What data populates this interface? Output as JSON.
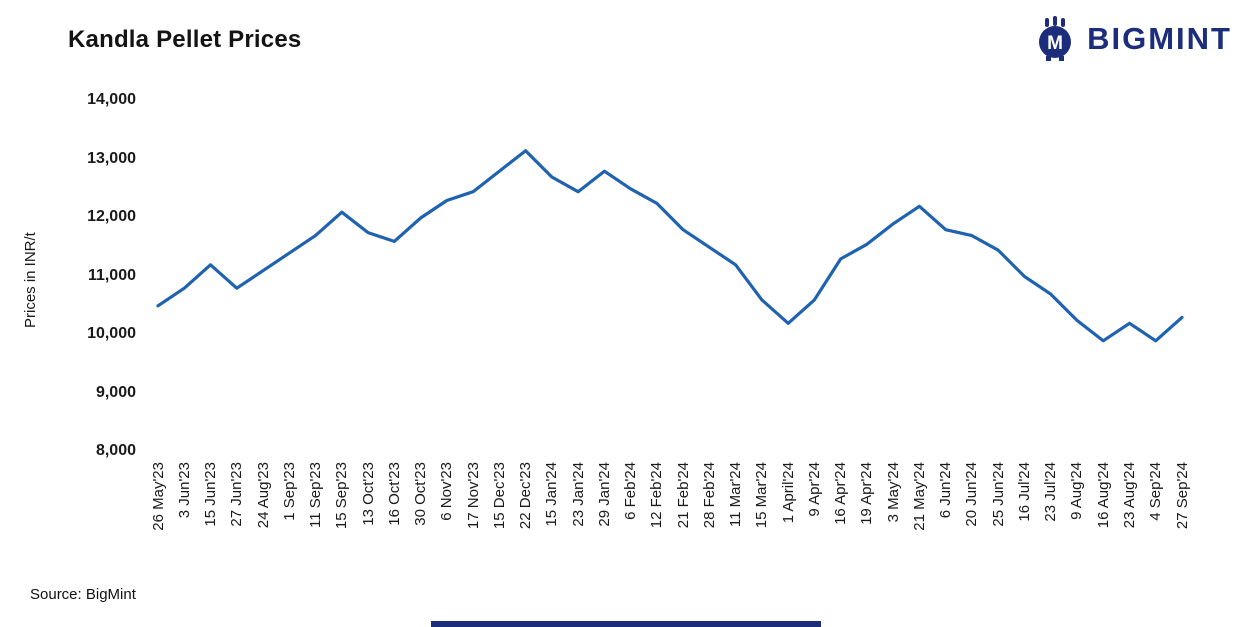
{
  "header": {
    "title": "Kandla Pellet Prices",
    "logo_text": "BIGMINT"
  },
  "chart_data": {
    "type": "line",
    "title": "Kandla Pellet Prices",
    "xlabel": "",
    "ylabel": "Prices in INR/t",
    "ylim": [
      8000,
      14000
    ],
    "ytick_interval": 1000,
    "ytick_labels": [
      "14,000",
      "13,000",
      "12,000",
      "11,000",
      "10,000",
      "9,000",
      "8,000"
    ],
    "grid": false,
    "legend_position": "none",
    "line_color": "#1f63b0",
    "categories": [
      "26 May'23",
      "3 Jun'23",
      "15 Jun'23",
      "27 Jun'23",
      "24 Aug'23",
      "1 Sep'23",
      "11 Sep'23",
      "15 Sep'23",
      "13 Oct'23",
      "16 Oct'23",
      "30 Oct'23",
      "6 Nov'23",
      "17 Nov'23",
      "15 Dec'23",
      "22 Dec'23",
      "15 Jan'24",
      "23 Jan'24",
      "29 Jan'24",
      "6 Feb'24",
      "12 Feb'24",
      "21 Feb'24",
      "28 Feb'24",
      "11 Mar'24",
      "15 Mar'24",
      "1 April'24",
      "9 Apr'24",
      "16 Apr'24",
      "19 Apr'24",
      "3 May'24",
      "21 May'24",
      "6 Jun'24",
      "20 Jun'24",
      "25 Jun'24",
      "16 Jul'24",
      "23 Jul'24",
      "9 Aug'24",
      "16 Aug'24",
      "23 Aug'24",
      "4 Sep'24",
      "27 Sep'24"
    ],
    "values": [
      10500,
      10800,
      11200,
      10800,
      11100,
      11400,
      11700,
      12100,
      11750,
      11600,
      12000,
      12300,
      12450,
      12800,
      13150,
      12700,
      12450,
      12800,
      12500,
      12250,
      11800,
      11500,
      11200,
      10600,
      10200,
      10600,
      11300,
      11550,
      11900,
      12200,
      11800,
      11700,
      11450,
      11000,
      10700,
      10250,
      9900,
      10200,
      9900,
      10300
    ]
  },
  "footer": {
    "source": "Source: BigMint"
  },
  "colors": {
    "line": "#1f63b0",
    "brand_navy": "#1c2e7b",
    "text": "#1a1a1a"
  }
}
